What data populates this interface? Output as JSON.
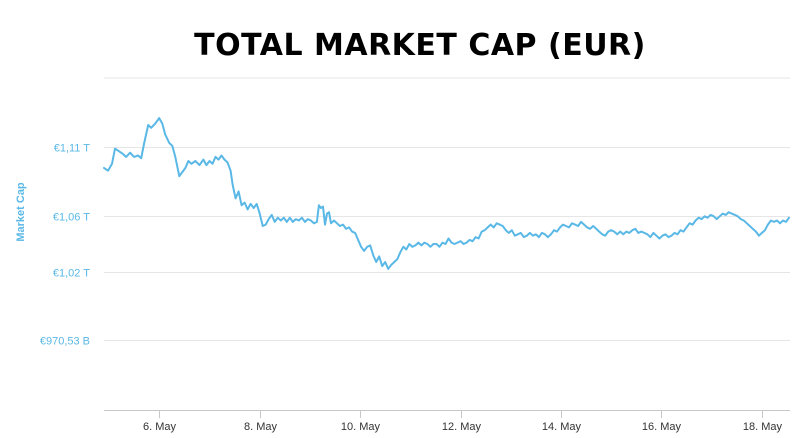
{
  "chart_data": {
    "type": "line",
    "title": "TOTAL MARKET CAP (EUR)",
    "ylabel": "Market Cap",
    "xlabel": "",
    "y_ticks": [
      {
        "value": 970.53,
        "label": "€970,53 B"
      },
      {
        "value": 1020,
        "label": "€1,02 T"
      },
      {
        "value": 1060,
        "label": "€1,06 T"
      },
      {
        "value": 1110,
        "label": "€1,11 T"
      }
    ],
    "x_ticks": [
      {
        "value": 6,
        "label": "6. May"
      },
      {
        "value": 8,
        "label": "8. May"
      },
      {
        "value": 10,
        "label": "10. May"
      },
      {
        "value": 12,
        "label": "12. May"
      },
      {
        "value": 14,
        "label": "14. May"
      },
      {
        "value": 16,
        "label": "16. May"
      },
      {
        "value": 18,
        "label": "18. May"
      }
    ],
    "x_range": [
      4.9,
      18.56
    ],
    "y_range": [
      920,
      1160
    ],
    "grid": true,
    "line_color": "#5ab8e6",
    "series": [
      {
        "values": [
          [
            4.9,
            1095
          ],
          [
            4.98,
            1093
          ],
          [
            5.06,
            1098
          ],
          [
            5.12,
            1109
          ],
          [
            5.2,
            1107
          ],
          [
            5.28,
            1105
          ],
          [
            5.34,
            1103
          ],
          [
            5.42,
            1106
          ],
          [
            5.5,
            1103
          ],
          [
            5.58,
            1104
          ],
          [
            5.64,
            1102
          ],
          [
            5.7,
            1113
          ],
          [
            5.78,
            1126
          ],
          [
            5.84,
            1124
          ],
          [
            5.92,
            1127
          ],
          [
            6.0,
            1131
          ],
          [
            6.06,
            1127
          ],
          [
            6.12,
            1119
          ],
          [
            6.2,
            1113
          ],
          [
            6.26,
            1111
          ],
          [
            6.32,
            1103
          ],
          [
            6.4,
            1089
          ],
          [
            6.46,
            1092
          ],
          [
            6.52,
            1095
          ],
          [
            6.58,
            1100
          ],
          [
            6.64,
            1098
          ],
          [
            6.72,
            1100
          ],
          [
            6.8,
            1097
          ],
          [
            6.88,
            1101
          ],
          [
            6.94,
            1097
          ],
          [
            7.0,
            1100
          ],
          [
            7.06,
            1098
          ],
          [
            7.12,
            1103
          ],
          [
            7.18,
            1101
          ],
          [
            7.24,
            1104
          ],
          [
            7.3,
            1101
          ],
          [
            7.36,
            1099
          ],
          [
            7.42,
            1093
          ],
          [
            7.46,
            1083
          ],
          [
            7.52,
            1073
          ],
          [
            7.58,
            1078
          ],
          [
            7.64,
            1068
          ],
          [
            7.7,
            1070
          ],
          [
            7.76,
            1065
          ],
          [
            7.82,
            1069
          ],
          [
            7.88,
            1066
          ],
          [
            7.94,
            1069
          ],
          [
            8.0,
            1062
          ],
          [
            8.06,
            1053
          ],
          [
            8.12,
            1054
          ],
          [
            8.18,
            1058
          ],
          [
            8.24,
            1061
          ],
          [
            8.3,
            1056
          ],
          [
            8.36,
            1059
          ],
          [
            8.42,
            1057
          ],
          [
            8.48,
            1059
          ],
          [
            8.54,
            1056
          ],
          [
            8.6,
            1059
          ],
          [
            8.66,
            1056
          ],
          [
            8.72,
            1058
          ],
          [
            8.78,
            1057
          ],
          [
            8.84,
            1059
          ],
          [
            8.9,
            1056
          ],
          [
            8.96,
            1058
          ],
          [
            9.02,
            1057
          ],
          [
            9.08,
            1055
          ],
          [
            9.14,
            1056
          ],
          [
            9.18,
            1068
          ],
          [
            9.22,
            1066
          ],
          [
            9.26,
            1067
          ],
          [
            9.3,
            1054
          ],
          [
            9.34,
            1062
          ],
          [
            9.38,
            1063
          ],
          [
            9.42,
            1055
          ],
          [
            9.48,
            1057
          ],
          [
            9.54,
            1055
          ],
          [
            9.6,
            1053
          ],
          [
            9.66,
            1054
          ],
          [
            9.72,
            1051
          ],
          [
            9.78,
            1052
          ],
          [
            9.84,
            1049
          ],
          [
            9.9,
            1048
          ],
          [
            9.96,
            1043
          ],
          [
            10.02,
            1038
          ],
          [
            10.08,
            1035
          ],
          [
            10.14,
            1038
          ],
          [
            10.2,
            1039
          ],
          [
            10.26,
            1032
          ],
          [
            10.32,
            1027
          ],
          [
            10.38,
            1031
          ],
          [
            10.44,
            1024
          ],
          [
            10.5,
            1027
          ],
          [
            10.56,
            1022
          ],
          [
            10.62,
            1025
          ],
          [
            10.68,
            1027
          ],
          [
            10.74,
            1029
          ],
          [
            10.8,
            1034
          ],
          [
            10.86,
            1038
          ],
          [
            10.92,
            1036
          ],
          [
            10.98,
            1040
          ],
          [
            11.04,
            1038
          ],
          [
            11.1,
            1039
          ],
          [
            11.16,
            1041
          ],
          [
            11.22,
            1039
          ],
          [
            11.28,
            1041
          ],
          [
            11.34,
            1040
          ],
          [
            11.4,
            1038
          ],
          [
            11.46,
            1040
          ],
          [
            11.52,
            1040
          ],
          [
            11.58,
            1038
          ],
          [
            11.64,
            1041
          ],
          [
            11.7,
            1040
          ],
          [
            11.76,
            1044
          ],
          [
            11.82,
            1041
          ],
          [
            11.88,
            1040
          ],
          [
            11.94,
            1041
          ],
          [
            12.0,
            1042
          ],
          [
            12.06,
            1040
          ],
          [
            12.12,
            1041
          ],
          [
            12.18,
            1043
          ],
          [
            12.24,
            1042
          ],
          [
            12.3,
            1045
          ],
          [
            12.36,
            1044
          ],
          [
            12.42,
            1049
          ],
          [
            12.48,
            1050
          ],
          [
            12.54,
            1052
          ],
          [
            12.6,
            1054
          ],
          [
            12.66,
            1052
          ],
          [
            12.72,
            1055
          ],
          [
            12.78,
            1054
          ],
          [
            12.84,
            1053
          ],
          [
            12.9,
            1050
          ],
          [
            12.96,
            1048
          ],
          [
            13.02,
            1050
          ],
          [
            13.08,
            1046
          ],
          [
            13.14,
            1047
          ],
          [
            13.2,
            1048
          ],
          [
            13.26,
            1045
          ],
          [
            13.32,
            1046
          ],
          [
            13.38,
            1048
          ],
          [
            13.44,
            1046
          ],
          [
            13.5,
            1047
          ],
          [
            13.56,
            1045
          ],
          [
            13.62,
            1048
          ],
          [
            13.68,
            1047
          ],
          [
            13.74,
            1045
          ],
          [
            13.8,
            1047
          ],
          [
            13.86,
            1050
          ],
          [
            13.92,
            1049
          ],
          [
            13.98,
            1052
          ],
          [
            14.04,
            1054
          ],
          [
            14.1,
            1053
          ],
          [
            14.16,
            1052
          ],
          [
            14.22,
            1055
          ],
          [
            14.28,
            1054
          ],
          [
            14.34,
            1053
          ],
          [
            14.4,
            1056
          ],
          [
            14.46,
            1054
          ],
          [
            14.52,
            1052
          ],
          [
            14.58,
            1051
          ],
          [
            14.64,
            1053
          ],
          [
            14.7,
            1051
          ],
          [
            14.76,
            1049
          ],
          [
            14.82,
            1047
          ],
          [
            14.88,
            1046
          ],
          [
            14.94,
            1049
          ],
          [
            15.0,
            1050
          ],
          [
            15.06,
            1049
          ],
          [
            15.12,
            1047
          ],
          [
            15.18,
            1049
          ],
          [
            15.24,
            1047
          ],
          [
            15.3,
            1049
          ],
          [
            15.36,
            1048
          ],
          [
            15.42,
            1050
          ],
          [
            15.48,
            1051
          ],
          [
            15.54,
            1048
          ],
          [
            15.6,
            1049
          ],
          [
            15.66,
            1048
          ],
          [
            15.72,
            1047
          ],
          [
            15.78,
            1045
          ],
          [
            15.84,
            1048
          ],
          [
            15.9,
            1046
          ],
          [
            15.96,
            1044
          ],
          [
            16.02,
            1046
          ],
          [
            16.08,
            1047
          ],
          [
            16.14,
            1045
          ],
          [
            16.2,
            1046
          ],
          [
            16.26,
            1048
          ],
          [
            16.32,
            1047
          ],
          [
            16.38,
            1050
          ],
          [
            16.44,
            1049
          ],
          [
            16.5,
            1052
          ],
          [
            16.56,
            1055
          ],
          [
            16.62,
            1054
          ],
          [
            16.68,
            1057
          ],
          [
            16.74,
            1059
          ],
          [
            16.8,
            1058
          ],
          [
            16.86,
            1060
          ],
          [
            16.92,
            1059
          ],
          [
            16.98,
            1061
          ],
          [
            17.04,
            1060
          ],
          [
            17.1,
            1058
          ],
          [
            17.16,
            1060
          ],
          [
            17.22,
            1062
          ],
          [
            17.28,
            1061
          ],
          [
            17.34,
            1063
          ],
          [
            17.4,
            1062
          ],
          [
            17.46,
            1061
          ],
          [
            17.52,
            1060
          ],
          [
            17.58,
            1058
          ],
          [
            17.64,
            1057
          ],
          [
            17.7,
            1055
          ],
          [
            17.76,
            1053
          ],
          [
            17.82,
            1051
          ],
          [
            17.88,
            1049
          ],
          [
            17.94,
            1046
          ],
          [
            18.0,
            1048
          ],
          [
            18.06,
            1050
          ],
          [
            18.12,
            1054
          ],
          [
            18.18,
            1057
          ],
          [
            18.24,
            1056
          ],
          [
            18.3,
            1057
          ],
          [
            18.36,
            1055
          ],
          [
            18.42,
            1057
          ],
          [
            18.48,
            1056
          ],
          [
            18.54,
            1059
          ]
        ]
      }
    ]
  }
}
